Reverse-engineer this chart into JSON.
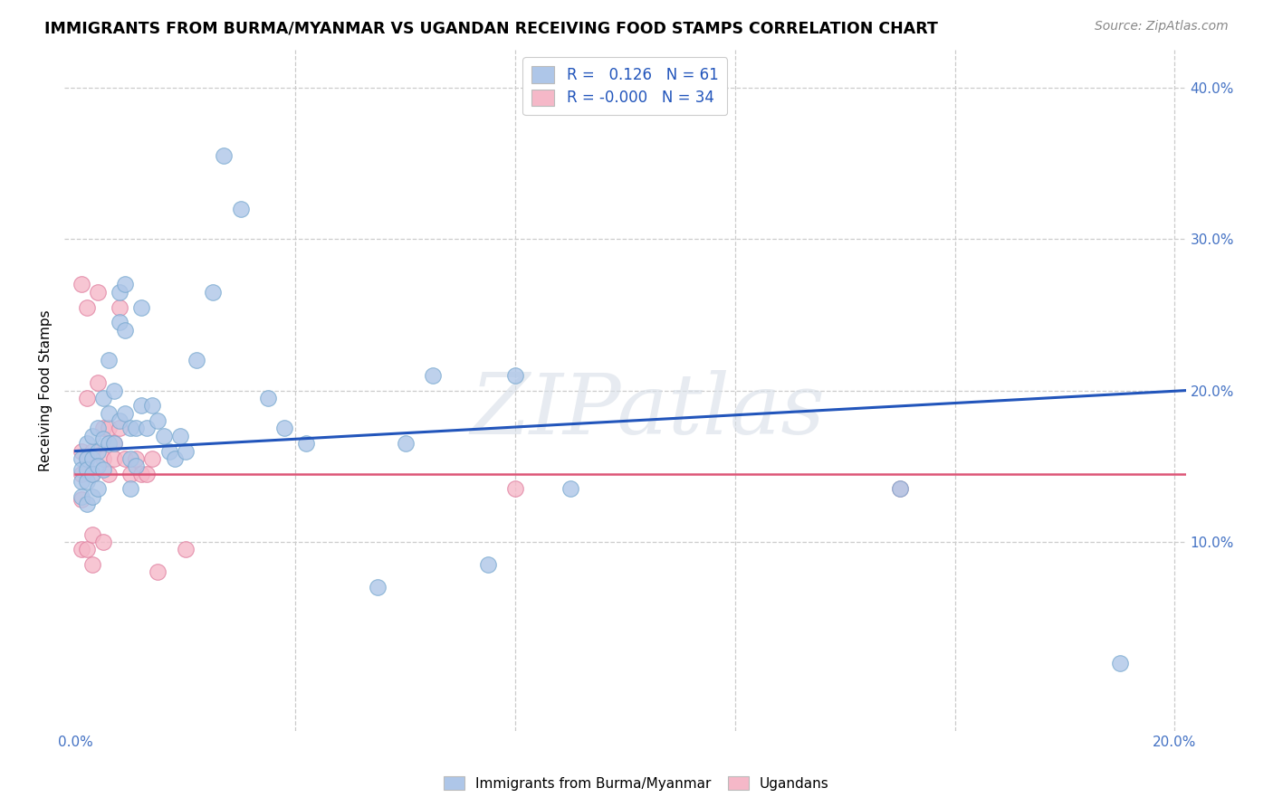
{
  "title": "IMMIGRANTS FROM BURMA/MYANMAR VS UGANDAN RECEIVING FOOD STAMPS CORRELATION CHART",
  "source": "Source: ZipAtlas.com",
  "ylabel_text": "Receiving Food Stamps",
  "xlim": [
    -0.002,
    0.202
  ],
  "ylim": [
    -0.025,
    0.425
  ],
  "blue_R": "0.126",
  "blue_N": "61",
  "pink_R": "-0.000",
  "pink_N": "34",
  "blue_color": "#aec6e8",
  "pink_color": "#f5b8c8",
  "blue_edge_color": "#7aaad0",
  "pink_edge_color": "#e080a0",
  "blue_line_color": "#2255bb",
  "pink_line_color": "#dd5577",
  "watermark": "ZIPatlas",
  "legend_label_blue": "Immigrants from Burma/Myanmar",
  "legend_label_pink": "Ugandans",
  "blue_line_x0": 0.0,
  "blue_line_y0": 0.16,
  "blue_line_x1": 0.202,
  "blue_line_y1": 0.2,
  "pink_line_x0": 0.0,
  "pink_line_y0": 0.145,
  "pink_line_x1": 0.202,
  "pink_line_y1": 0.145,
  "blue_scatter_x": [
    0.001,
    0.001,
    0.001,
    0.001,
    0.002,
    0.002,
    0.002,
    0.002,
    0.002,
    0.003,
    0.003,
    0.003,
    0.003,
    0.004,
    0.004,
    0.004,
    0.004,
    0.005,
    0.005,
    0.005,
    0.006,
    0.006,
    0.006,
    0.007,
    0.007,
    0.008,
    0.008,
    0.008,
    0.009,
    0.009,
    0.009,
    0.01,
    0.01,
    0.01,
    0.011,
    0.011,
    0.012,
    0.012,
    0.013,
    0.014,
    0.015,
    0.016,
    0.017,
    0.018,
    0.019,
    0.02,
    0.022,
    0.025,
    0.027,
    0.03,
    0.035,
    0.038,
    0.042,
    0.055,
    0.06,
    0.065,
    0.075,
    0.08,
    0.09,
    0.15,
    0.19
  ],
  "blue_scatter_y": [
    0.155,
    0.148,
    0.14,
    0.13,
    0.165,
    0.155,
    0.148,
    0.14,
    0.125,
    0.17,
    0.155,
    0.145,
    0.13,
    0.175,
    0.16,
    0.15,
    0.135,
    0.195,
    0.168,
    0.148,
    0.22,
    0.185,
    0.165,
    0.2,
    0.165,
    0.265,
    0.245,
    0.18,
    0.27,
    0.24,
    0.185,
    0.175,
    0.155,
    0.135,
    0.175,
    0.15,
    0.255,
    0.19,
    0.175,
    0.19,
    0.18,
    0.17,
    0.16,
    0.155,
    0.17,
    0.16,
    0.22,
    0.265,
    0.355,
    0.32,
    0.195,
    0.175,
    0.165,
    0.07,
    0.165,
    0.21,
    0.085,
    0.21,
    0.135,
    0.135,
    0.02
  ],
  "pink_scatter_x": [
    0.001,
    0.001,
    0.001,
    0.001,
    0.001,
    0.002,
    0.002,
    0.002,
    0.002,
    0.003,
    0.003,
    0.003,
    0.003,
    0.004,
    0.004,
    0.005,
    0.005,
    0.005,
    0.006,
    0.006,
    0.007,
    0.007,
    0.008,
    0.008,
    0.009,
    0.01,
    0.011,
    0.012,
    0.013,
    0.014,
    0.015,
    0.02,
    0.08,
    0.15
  ],
  "pink_scatter_y": [
    0.27,
    0.16,
    0.145,
    0.128,
    0.095,
    0.255,
    0.195,
    0.155,
    0.095,
    0.16,
    0.145,
    0.105,
    0.085,
    0.265,
    0.205,
    0.175,
    0.155,
    0.1,
    0.175,
    0.145,
    0.165,
    0.155,
    0.255,
    0.175,
    0.155,
    0.145,
    0.155,
    0.145,
    0.145,
    0.155,
    0.08,
    0.095,
    0.135,
    0.135
  ]
}
